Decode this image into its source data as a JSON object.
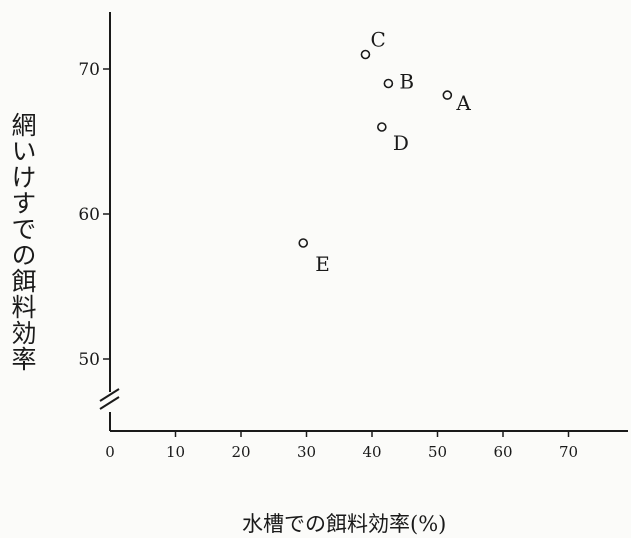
{
  "chart_data": {
    "type": "scatter",
    "title": "",
    "xlabel": "水槽での餌料効率(%)",
    "ylabel": "網いけすでの餌料効率",
    "xlim": [
      0,
      70
    ],
    "ylim": [
      48,
      74
    ],
    "y_axis_break": true,
    "x_ticks": [
      "0",
      "10",
      "20",
      "30",
      "40",
      "50",
      "60",
      "70"
    ],
    "y_ticks": [
      "50",
      "60",
      "70"
    ],
    "grid": false,
    "points": [
      {
        "label": "A",
        "x": 51.5,
        "y": 68.2
      },
      {
        "label": "B",
        "x": 42.5,
        "y": 69.0
      },
      {
        "label": "C",
        "x": 39.0,
        "y": 71.0
      },
      {
        "label": "D",
        "x": 41.5,
        "y": 66.0
      },
      {
        "label": "E",
        "x": 29.5,
        "y": 58.0
      }
    ]
  },
  "colors": {
    "ink": "#1a1a1a",
    "background": "#fbfbf9"
  }
}
